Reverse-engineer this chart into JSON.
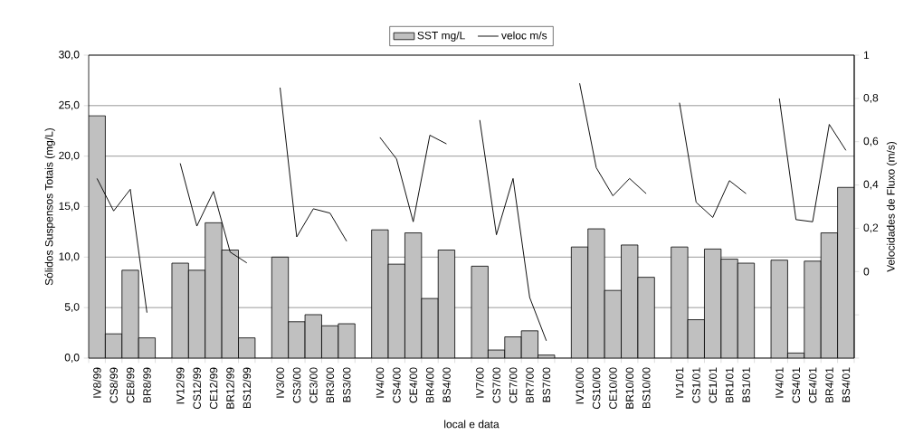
{
  "chart_data": {
    "type": "bar",
    "xlabel": "local e data",
    "ylabel": "Sólidos Suspensos Totais (mg/L)",
    "y2label": "Velocidades de Fluxo (m/s)",
    "categories": [
      "IV8/99",
      "CS8/99",
      "CE8/99",
      "BR8/99",
      null,
      "IV12/99",
      "CS12/99",
      "CE12/99",
      "BR12/99",
      "BS12/99",
      null,
      "IV3/00",
      "CS3/00",
      "CE3/00",
      "BR3/00",
      "BS3/00",
      null,
      "IV4/00",
      "CS4/00",
      "CE4/00",
      "BR4/00",
      "BS4/00",
      null,
      "IV7/00",
      "CS7/00",
      "CE7/00",
      "BR7/00",
      "BS7/00",
      null,
      "IV10/00",
      "CS10/00",
      "CE10/00",
      "BR10/00",
      "BS10/00",
      null,
      "IV1/01",
      "CS1/01",
      "CE1/01",
      "BR1/01",
      "BS1/01",
      null,
      "IV4/01",
      "CS4/01",
      "CE4/01",
      "BR4/01",
      "BS4/01"
    ],
    "series": [
      {
        "name": "SST mg/L",
        "color": "#c0c0c0",
        "values": [
          24.0,
          2.4,
          8.7,
          2.0,
          null,
          9.4,
          8.7,
          13.4,
          10.7,
          2.0,
          null,
          10.0,
          3.6,
          4.3,
          3.2,
          3.4,
          null,
          12.7,
          9.3,
          12.4,
          5.9,
          10.7,
          null,
          9.1,
          0.8,
          2.1,
          2.7,
          0.3,
          null,
          11.0,
          12.8,
          6.7,
          11.2,
          8.0,
          null,
          11.0,
          3.8,
          10.8,
          9.8,
          9.4,
          null,
          9.7,
          0.5,
          9.6,
          12.4,
          16.9
        ]
      },
      {
        "name": "veloc m/s",
        "type": "line",
        "axis": "y2",
        "color": "#000000",
        "values": [
          0.43,
          0.28,
          0.38,
          -0.19,
          null,
          0.5,
          0.21,
          0.37,
          0.09,
          0.04,
          null,
          0.85,
          0.16,
          0.29,
          0.27,
          0.14,
          null,
          0.62,
          0.52,
          0.23,
          0.63,
          0.59,
          null,
          0.7,
          0.17,
          0.43,
          -0.12,
          -0.32,
          null,
          0.87,
          0.48,
          0.35,
          0.43,
          0.36,
          null,
          0.78,
          0.32,
          0.25,
          0.42,
          0.36,
          null,
          0.8,
          0.24,
          0.23,
          0.68,
          0.56
        ]
      }
    ],
    "ylim": [
      0,
      30
    ],
    "yticks": [
      {
        "value": 0,
        "label": "0,0"
      },
      {
        "value": 5,
        "label": "5,0"
      },
      {
        "value": 10,
        "label": "10,0"
      },
      {
        "value": 15,
        "label": "15,0"
      },
      {
        "value": 20,
        "label": "20,0"
      },
      {
        "value": 25,
        "label": "25,0"
      },
      {
        "value": 30,
        "label": "30,0"
      }
    ],
    "y2lim": [
      -0.4,
      1
    ],
    "y2ticks": [
      {
        "value": -0.4,
        "label": null
      },
      {
        "value": -0.2,
        "label": null
      },
      {
        "value": 0,
        "label": "0"
      },
      {
        "value": 0.2,
        "label": "0,2"
      },
      {
        "value": 0.4,
        "label": "0,4"
      },
      {
        "value": 0.6,
        "label": "0,6"
      },
      {
        "value": 0.8,
        "label": "0,8"
      },
      {
        "value": 1,
        "label": "1"
      }
    ],
    "grid": "y",
    "legend": "top"
  }
}
